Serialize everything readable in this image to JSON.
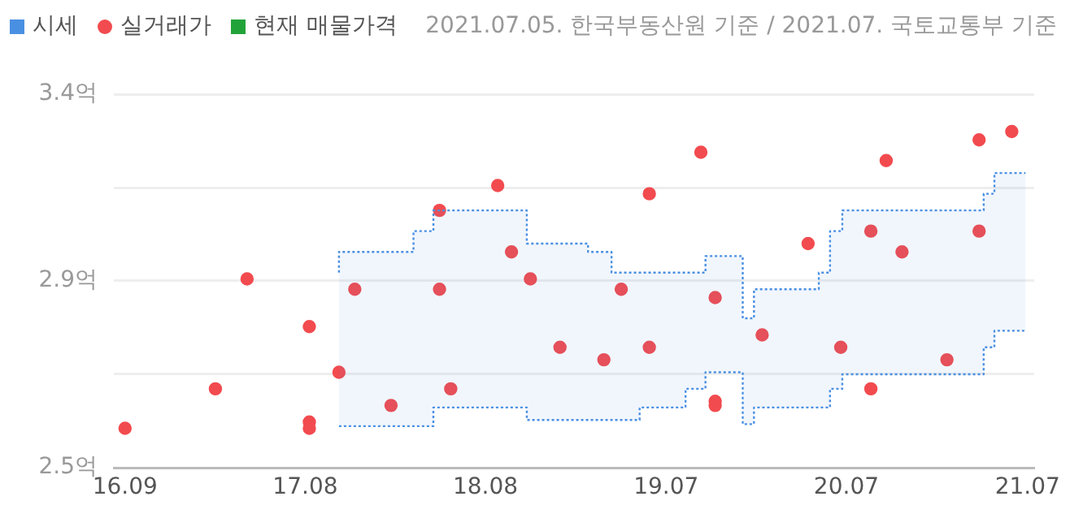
{
  "chart_data": {
    "type": "scatter",
    "annotations": [
      "2021.07.05. 한국부동산원 기준 / 2021.07. 국토교통부 기준"
    ],
    "legend": "top left",
    "grid": "y",
    "xlim": [
      "2016-08-10",
      "2021-07-18"
    ],
    "xticks": [
      {
        "value": "2016-09-01",
        "label": "16.09"
      },
      {
        "value": "2017-08-20",
        "label": "17.08"
      },
      {
        "value": "2018-08-08",
        "label": "18.08"
      },
      {
        "value": "2019-07-28",
        "label": "19.07"
      },
      {
        "value": "2020-07-15",
        "label": "20.07"
      },
      {
        "value": "2021-07-05",
        "label": "21.07"
      }
    ],
    "ylim": [
      2.5,
      3.4
    ],
    "yticks": [
      {
        "value": 2.5,
        "label": "2.5억"
      },
      {
        "value": 2.725,
        "label": null
      },
      {
        "value": 2.95,
        "label": "2.9억"
      },
      {
        "value": 3.175,
        "label": null
      },
      {
        "value": 3.4,
        "label": "3.4억"
      }
    ],
    "series": [
      {
        "name": "시세",
        "type": "step",
        "color": "#4a90e2",
        "line_style": "dotted",
        "x": [
          "2017-10-25",
          "2018-03-20",
          "2018-04-28",
          "2018-10-28",
          "2019-02-25",
          "2019-04-12",
          "2019-06-06",
          "2019-09-04",
          "2019-10-13",
          "2019-12-25",
          "2020-01-16",
          "2020-05-22",
          "2020-06-13",
          "2020-07-07",
          "2021-04-10",
          "2021-05-01",
          "2021-05-22",
          "2021-07-01"
        ],
        "values": [
          2.97,
          3.02,
          3.07,
          3.12,
          3.04,
          3.02,
          2.97,
          2.97,
          2.97,
          3.01,
          2.86,
          2.93,
          2.97,
          3.07,
          3.12,
          3.16,
          3.21,
          3.21
        ],
        "upper": [
          2.97,
          3.02,
          3.07,
          3.12,
          3.04,
          3.02,
          2.97,
          2.97,
          2.97,
          3.01,
          2.86,
          2.93,
          2.97,
          3.07,
          3.12,
          3.16,
          3.21,
          3.21
        ],
        "lower": [
          2.6,
          2.6,
          2.6,
          2.645,
          2.615,
          2.615,
          2.615,
          2.645,
          2.69,
          2.73,
          2.605,
          2.645,
          2.645,
          2.69,
          2.725,
          2.79,
          2.83,
          2.83
        ]
      },
      {
        "type": "step",
        "color": "#4a90e2",
        "line_style": "dotted",
        "x": [
          "2017-10-25",
          "2018-03-20",
          "2018-04-28",
          "2018-10-28",
          "2019-02-25",
          "2019-04-12",
          "2019-06-06",
          "2019-09-04",
          "2019-10-13",
          "2019-12-25",
          "2020-01-16",
          "2020-05-22",
          "2020-06-13",
          "2020-07-07",
          "2021-04-10",
          "2021-05-01",
          "2021-05-22",
          "2021-07-01"
        ],
        "values": [
          2.6,
          2.6,
          2.6,
          2.645,
          2.615,
          2.615,
          2.615,
          2.645,
          2.69,
          2.73,
          2.605,
          2.645,
          2.645,
          2.69,
          2.725,
          2.79,
          2.83,
          2.83
        ]
      },
      {
        "name": "실거래가",
        "color": "#f24b4f",
        "marker": "circle",
        "x": [
          "2016-09-01",
          "2017-02-25",
          "2017-04-28",
          "2017-08-28",
          "2017-08-28",
          "2017-08-28",
          "2017-10-25",
          "2017-11-25",
          "2018-02-04",
          "2018-05-10",
          "2018-05-10",
          "2018-06-01",
          "2018-09-01",
          "2018-09-28",
          "2018-11-04",
          "2019-01-01",
          "2019-03-28",
          "2019-05-01",
          "2019-06-25",
          "2019-06-25",
          "2019-10-04",
          "2019-11-01",
          "2019-11-01",
          "2019-11-01",
          "2020-02-01",
          "2020-05-01",
          "2020-07-04",
          "2020-09-01",
          "2020-09-01",
          "2020-10-01",
          "2020-11-01",
          "2021-01-28",
          "2021-04-01",
          "2021-04-01",
          "2021-06-04"
        ],
        "values": [
          2.595,
          2.69,
          2.955,
          2.84,
          2.61,
          2.595,
          2.73,
          2.93,
          2.65,
          3.12,
          2.93,
          2.69,
          3.18,
          3.02,
          2.955,
          2.79,
          2.76,
          2.93,
          3.16,
          2.79,
          3.26,
          2.91,
          2.66,
          2.65,
          2.82,
          3.04,
          2.79,
          3.07,
          2.69,
          3.24,
          3.02,
          2.76,
          3.29,
          3.07,
          3.31
        ]
      },
      {
        "name": "현재 매물가격",
        "color": "#22a33a",
        "marker": "square"
      }
    ]
  }
}
